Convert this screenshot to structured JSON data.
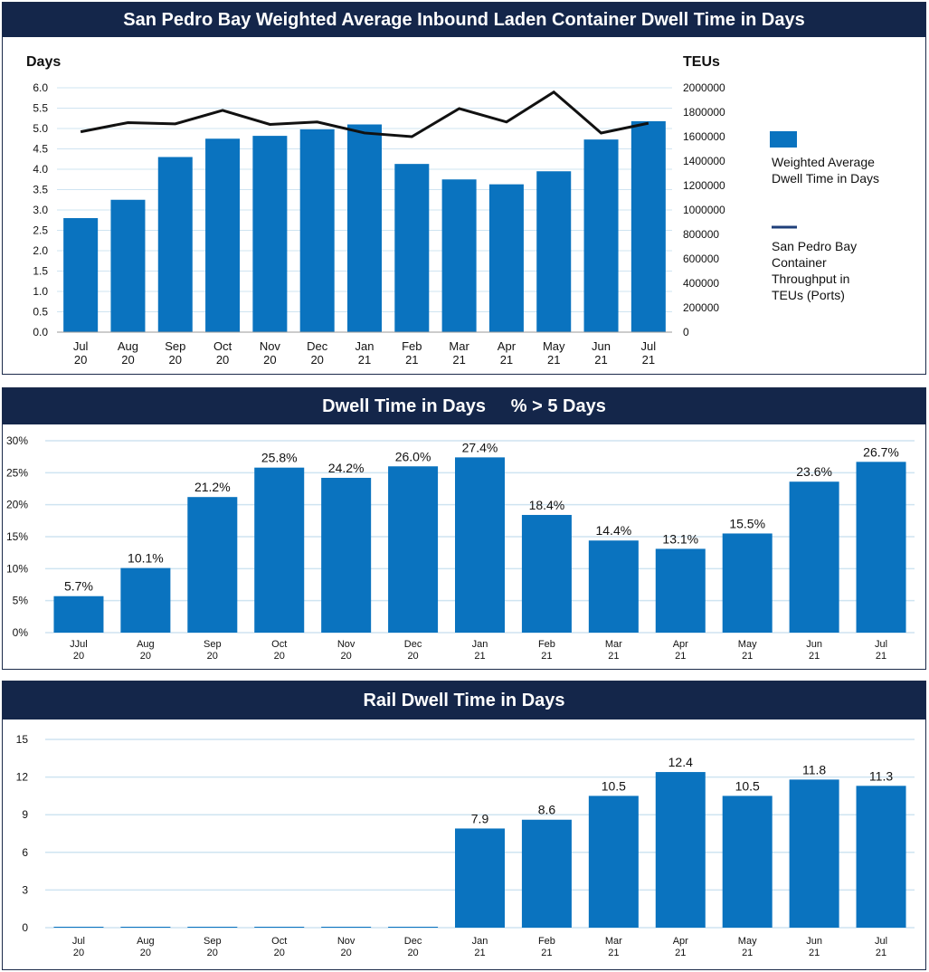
{
  "colors": {
    "header_bg": "#14264a",
    "bar": "#0a73bf",
    "line": "#111111",
    "grid": "#cfe4f1",
    "legend_line": "#1f3f7a"
  },
  "chart_data": [
    {
      "type": "bar",
      "title": "San Pedro Bay Weighted Average Inbound Laden Container Dwell Time in Days",
      "ylabel": "Days",
      "y2label": "TEUs",
      "categories": [
        "Jul\n20",
        "Aug\n20",
        "Sep\n20",
        "Oct\n20",
        "Nov\n20",
        "Dec\n20",
        "Jan\n21",
        "Feb\n21",
        "Mar\n21",
        "Apr\n21",
        "May\n21",
        "Jun\n21",
        "Jul\n21"
      ],
      "ylim": [
        0,
        6.0
      ],
      "yticks": [
        "0.0",
        "0.5",
        "1.0",
        "1.5",
        "2.0",
        "2.5",
        "3.0",
        "3.5",
        "4.0",
        "4.5",
        "5.0",
        "5.5",
        "6.0"
      ],
      "y2lim": [
        0,
        2000000
      ],
      "y2ticks": [
        "0",
        "200000",
        "400000",
        "600000",
        "800000",
        "1000000",
        "1200000",
        "1400000",
        "1600000",
        "1800000",
        "2000000"
      ],
      "grid": true,
      "legend_position": "right",
      "series": [
        {
          "name": "Weighted Average Dwell Time in Days",
          "kind": "bar",
          "axis": "left",
          "values": [
            2.8,
            3.25,
            4.3,
            4.75,
            4.82,
            4.98,
            5.1,
            4.13,
            3.75,
            3.63,
            3.95,
            4.73,
            5.18
          ]
        },
        {
          "name": "San Pedro Bay Container Throughput in TEUs (Ports)",
          "kind": "line",
          "axis": "right",
          "values": [
            1640000,
            1715000,
            1705000,
            1815000,
            1700000,
            1720000,
            1630000,
            1600000,
            1830000,
            1720000,
            1965000,
            1630000,
            1710000
          ]
        }
      ]
    },
    {
      "type": "bar",
      "title": "Dwell Time in Days     % > 5 Days",
      "categories": [
        "JJul\n20",
        "Aug\n20",
        "Sep\n20",
        "Oct\n20",
        "Nov\n20",
        "Dec\n20",
        "Jan\n21",
        "Feb\n21",
        "Mar\n21",
        "Apr\n21",
        "May\n21",
        "Jun\n21",
        "Jul\n21"
      ],
      "ylim": [
        0,
        30
      ],
      "yticks": [
        "0%",
        "5%",
        "10%",
        "15%",
        "20%",
        "25%",
        "30%"
      ],
      "grid": true,
      "series": [
        {
          "values": [
            5.7,
            10.1,
            21.2,
            25.8,
            24.2,
            26.0,
            27.4,
            18.4,
            14.4,
            13.1,
            15.5,
            23.6,
            26.7
          ],
          "labels": [
            "5.7%",
            "10.1%",
            "21.2%",
            "25.8%",
            "24.2%",
            "26.0%",
            "27.4%",
            "18.4%",
            "14.4%",
            "13.1%",
            "15.5%",
            "23.6%",
            "26.7%"
          ]
        }
      ]
    },
    {
      "type": "bar",
      "title": "Rail Dwell Time in Days",
      "categories": [
        "Jul\n20",
        "Aug\n20",
        "Sep\n20",
        "Oct\n20",
        "Nov\n20",
        "Dec\n20",
        "Jan\n21",
        "Feb\n21",
        "Mar\n21",
        "Apr\n21",
        "May\n21",
        "Jun\n21",
        "Jul\n21"
      ],
      "ylim": [
        0,
        15
      ],
      "yticks": [
        "0",
        "3",
        "6",
        "9",
        "12",
        "15"
      ],
      "grid": true,
      "series": [
        {
          "values": [
            0,
            0,
            0,
            0,
            0,
            0,
            7.9,
            8.6,
            10.5,
            12.4,
            10.5,
            11.8,
            11.3
          ],
          "labels": [
            "",
            "",
            "",
            "",
            "",
            "",
            "7.9",
            "8.6",
            "10.5",
            "12.4",
            "10.5",
            "11.8",
            "11.3"
          ]
        }
      ]
    }
  ]
}
